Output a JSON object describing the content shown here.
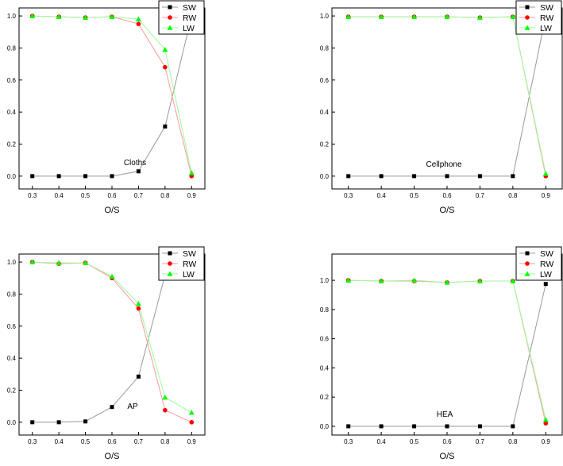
{
  "colors": {
    "SW": "#000000",
    "RW": "#ff0000",
    "LW": "#00ff00",
    "SW_line": "#999999",
    "RW_line": "#ff9999",
    "LW_line": "#99ff99"
  },
  "chart_data": [
    {
      "type": "line",
      "title": "",
      "annotation": "Cloths",
      "xlabel": "O/S",
      "ylabel": "",
      "x": [
        0.3,
        0.4,
        0.5,
        0.6,
        0.7,
        0.8,
        0.9
      ],
      "x_ticks": [
        "0.3",
        "0.4",
        "0.5",
        "0.6",
        "0.7",
        "0.8",
        "0.9"
      ],
      "y_ticks": [
        "0.0",
        "0.2",
        "0.4",
        "0.6",
        "0.8",
        "1.0"
      ],
      "ylim": [
        -0.08,
        1.05
      ],
      "xlim": [
        0.25,
        0.95
      ],
      "legend_position": "top-right",
      "series": [
        {
          "name": "SW",
          "marker": "square",
          "values": [
            0.0,
            0.0,
            0.0,
            0.0,
            0.03,
            0.31,
            1.0
          ]
        },
        {
          "name": "RW",
          "marker": "circle",
          "values": [
            1.0,
            0.995,
            0.99,
            0.995,
            0.95,
            0.68,
            0.0
          ]
        },
        {
          "name": "LW",
          "marker": "triangle",
          "values": [
            1.0,
            0.995,
            0.99,
            0.995,
            0.98,
            0.79,
            0.02
          ]
        }
      ]
    },
    {
      "type": "line",
      "title": "",
      "annotation": "Cellphone",
      "xlabel": "O/S",
      "ylabel": "",
      "x": [
        0.3,
        0.4,
        0.5,
        0.6,
        0.7,
        0.8,
        0.9
      ],
      "x_ticks": [
        "0.3",
        "0.4",
        "0.5",
        "0.6",
        "0.7",
        "0.8",
        "0.9"
      ],
      "y_ticks": [
        "0.0",
        "0.2",
        "0.4",
        "0.6",
        "0.8",
        "1.0"
      ],
      "ylim": [
        -0.08,
        1.05
      ],
      "xlim": [
        0.25,
        0.95
      ],
      "legend_position": "top-right",
      "series": [
        {
          "name": "SW",
          "marker": "square",
          "values": [
            0.0,
            0.0,
            0.0,
            0.0,
            0.0,
            0.0,
            1.0
          ]
        },
        {
          "name": "RW",
          "marker": "circle",
          "values": [
            0.995,
            0.995,
            0.995,
            0.995,
            0.99,
            0.995,
            0.0
          ]
        },
        {
          "name": "LW",
          "marker": "triangle",
          "values": [
            0.995,
            0.995,
            0.995,
            0.995,
            0.99,
            0.995,
            0.015
          ]
        }
      ]
    },
    {
      "type": "line",
      "title": "",
      "annotation": "AP",
      "xlabel": "O/S",
      "ylabel": "",
      "x": [
        0.3,
        0.4,
        0.5,
        0.6,
        0.7,
        0.8,
        0.9
      ],
      "x_ticks": [
        "0.3",
        "0.4",
        "0.5",
        "0.6",
        "0.7",
        "0.8",
        "0.9"
      ],
      "y_ticks": [
        "0.0",
        "0.2",
        "0.4",
        "0.6",
        "0.8",
        "1.0"
      ],
      "ylim": [
        -0.08,
        1.05
      ],
      "xlim": [
        0.25,
        0.95
      ],
      "legend_position": "top-right",
      "series": [
        {
          "name": "SW",
          "marker": "square",
          "values": [
            0.0,
            0.0,
            0.005,
            0.095,
            0.285,
            0.92,
            1.0
          ]
        },
        {
          "name": "RW",
          "marker": "circle",
          "values": [
            1.0,
            0.99,
            0.995,
            0.9,
            0.71,
            0.075,
            0.0
          ]
        },
        {
          "name": "LW",
          "marker": "triangle",
          "values": [
            1.0,
            0.995,
            0.995,
            0.91,
            0.74,
            0.155,
            0.06
          ]
        }
      ]
    },
    {
      "type": "line",
      "title": "",
      "annotation": "HEA",
      "xlabel": "O/S",
      "ylabel": "",
      "x": [
        0.3,
        0.4,
        0.5,
        0.6,
        0.7,
        0.8,
        0.9
      ],
      "x_ticks": [
        "0.3",
        "0.4",
        "0.5",
        "0.6",
        "0.7",
        "0.8",
        "0.9"
      ],
      "y_ticks": [
        "0.0",
        "0.2",
        "0.4",
        "0.6",
        "0.8",
        "1.0"
      ],
      "ylim": [
        -0.06,
        1.18
      ],
      "xlim": [
        0.25,
        0.95
      ],
      "legend_position": "top-right",
      "series": [
        {
          "name": "SW",
          "marker": "square",
          "values": [
            0.0,
            0.0,
            0.0,
            0.0,
            0.0,
            0.0,
            0.975
          ]
        },
        {
          "name": "RW",
          "marker": "circle",
          "values": [
            1.0,
            0.995,
            0.995,
            0.985,
            0.995,
            0.995,
            0.02
          ]
        },
        {
          "name": "LW",
          "marker": "triangle",
          "values": [
            1.0,
            0.995,
            1.0,
            0.985,
            0.995,
            0.995,
            0.045
          ]
        }
      ]
    }
  ]
}
